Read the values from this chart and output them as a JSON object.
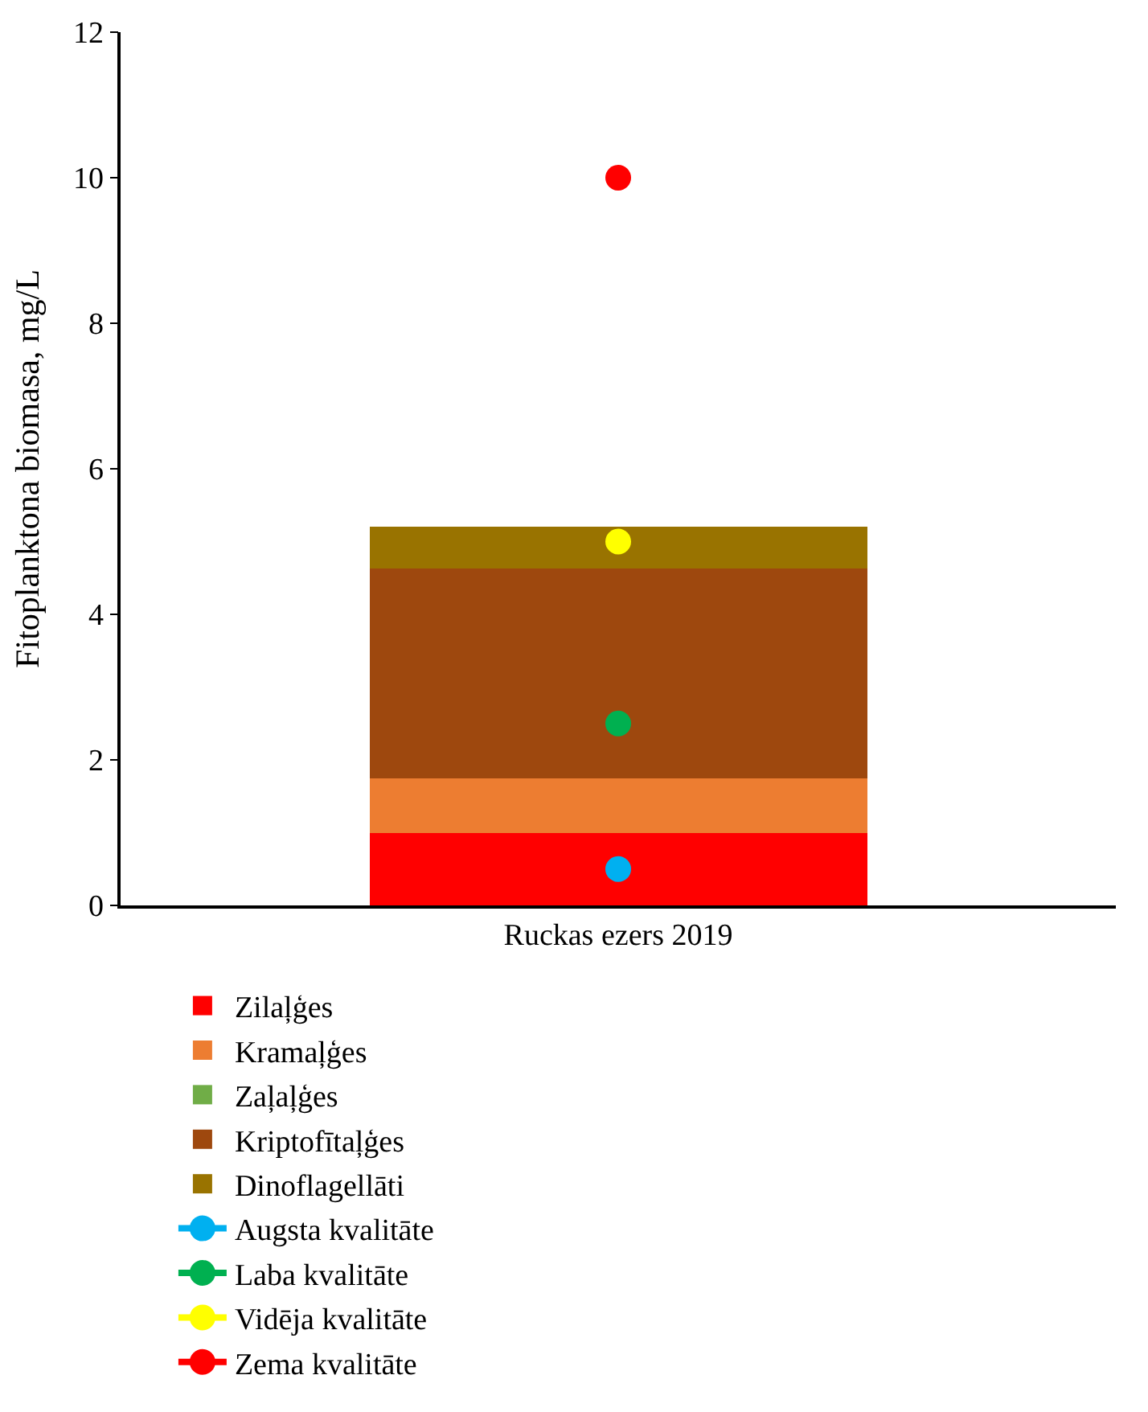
{
  "chart_data": {
    "type": "bar",
    "stacked": true,
    "ylabel": "Fitoplanktona biomasa, mg/L",
    "categories": [
      "Ruckas ezers 2019"
    ],
    "ylim": [
      0,
      12
    ],
    "yticks": [
      0,
      2,
      4,
      6,
      8,
      10,
      12
    ],
    "legend": "bottom",
    "marker": "circle",
    "series": [
      {
        "name": "Zilaļģes",
        "color": "#ff0000",
        "values": [
          1.0
        ]
      },
      {
        "name": "Kramaļģes",
        "color": "#ed7d31",
        "values": [
          0.75
        ]
      },
      {
        "name": "Zaļaļģes",
        "color": "#70ad47",
        "values": [
          0
        ]
      },
      {
        "name": "Kriptofītaļģes",
        "color": "#9e480e",
        "values": [
          2.88
        ]
      },
      {
        "name": "Dinoflagellāti",
        "color": "#997300",
        "values": [
          0.58
        ]
      },
      {
        "name": "Augsta kvalitāte",
        "type": "line",
        "color": "#00b0f0",
        "values": [
          0.5
        ]
      },
      {
        "name": "Laba kvalitāte",
        "type": "line",
        "color": "#00b050",
        "values": [
          2.5
        ]
      },
      {
        "name": "Vidēja kvalitāte",
        "type": "line",
        "color": "#ffff00",
        "values": [
          5
        ]
      },
      {
        "name": "Zema kvalitāte",
        "type": "line",
        "color": "#ff0000",
        "values": [
          10
        ]
      }
    ]
  }
}
